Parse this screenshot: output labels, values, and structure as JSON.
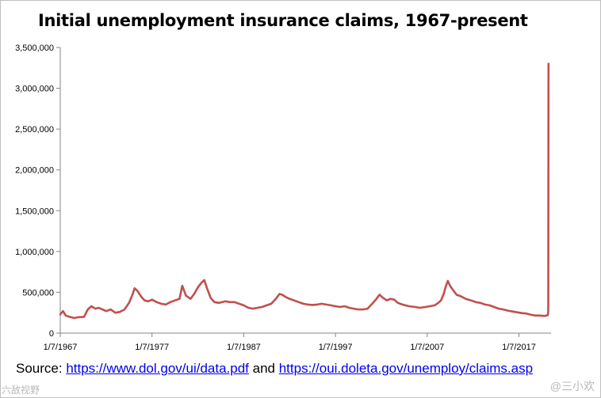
{
  "chart_data": {
    "type": "line",
    "title": "Initial unemployment insurance claims, 1967-present",
    "xlabel": "",
    "ylabel": "",
    "x_tick_labels": [
      "1/7/1967",
      "1/7/1977",
      "1/7/1987",
      "1/7/1997",
      "1/7/2007",
      "1/7/2017"
    ],
    "x_tick_years": [
      1967,
      1977,
      1987,
      1997,
      2007,
      2017
    ],
    "y_tick_labels": [
      "0",
      "500,000",
      "1,000,000",
      "1,500,000",
      "2,000,000",
      "2,500,000",
      "3,000,000",
      "3,500,000"
    ],
    "ylim": [
      0,
      3500000
    ],
    "xlim": [
      1967,
      2020.5
    ],
    "grid": false,
    "legend": "none",
    "series_color": "#c0504d",
    "series": [
      {
        "x": [
          1967.0,
          1967.3,
          1967.6,
          1968.0,
          1968.5,
          1969.0,
          1969.6,
          1970.0,
          1970.4,
          1970.8,
          1971.2,
          1971.6,
          1972.0,
          1972.5,
          1973.0,
          1973.5,
          1974.0,
          1974.5,
          1974.9,
          1975.1,
          1975.4,
          1975.8,
          1976.2,
          1976.6,
          1977.0,
          1977.5,
          1978.0,
          1978.5,
          1979.0,
          1979.5,
          1980.0,
          1980.3,
          1980.7,
          1981.2,
          1981.6,
          1982.0,
          1982.4,
          1982.7,
          1983.0,
          1983.4,
          1983.8,
          1984.3,
          1985.0,
          1985.5,
          1986.0,
          1986.5,
          1987.0,
          1987.5,
          1988.0,
          1988.5,
          1989.0,
          1989.5,
          1990.0,
          1990.5,
          1990.9,
          1991.2,
          1991.6,
          1992.0,
          1992.5,
          1993.0,
          1993.5,
          1994.0,
          1994.5,
          1995.0,
          1995.5,
          1996.0,
          1996.5,
          1997.0,
          1997.5,
          1998.0,
          1998.5,
          1999.0,
          1999.5,
          2000.0,
          2000.5,
          2001.0,
          2001.4,
          2001.8,
          2002.2,
          2002.6,
          2003.0,
          2003.4,
          2003.8,
          2004.3,
          2005.0,
          2005.7,
          2006.2,
          2006.8,
          2007.3,
          2007.8,
          2008.2,
          2008.5,
          2008.8,
          2009.0,
          2009.25,
          2009.5,
          2009.8,
          2010.2,
          2010.7,
          2011.2,
          2011.8,
          2012.3,
          2012.8,
          2013.3,
          2013.8,
          2014.3,
          2014.8,
          2015.3,
          2015.8,
          2016.3,
          2016.8,
          2017.3,
          2017.8,
          2018.3,
          2018.8,
          2019.3,
          2019.8,
          2020.0,
          2020.15,
          2020.2,
          2020.22
        ],
        "values": [
          230000,
          270000,
          215000,
          200000,
          185000,
          195000,
          200000,
          290000,
          330000,
          300000,
          310000,
          290000,
          270000,
          290000,
          250000,
          260000,
          290000,
          370000,
          480000,
          550000,
          520000,
          450000,
          400000,
          390000,
          410000,
          380000,
          360000,
          350000,
          380000,
          400000,
          420000,
          580000,
          460000,
          420000,
          480000,
          560000,
          620000,
          650000,
          550000,
          430000,
          380000,
          370000,
          390000,
          380000,
          380000,
          360000,
          340000,
          310000,
          300000,
          310000,
          320000,
          340000,
          360000,
          420000,
          480000,
          470000,
          440000,
          420000,
          400000,
          380000,
          360000,
          350000,
          345000,
          350000,
          360000,
          350000,
          340000,
          330000,
          320000,
          330000,
          310000,
          300000,
          290000,
          290000,
          300000,
          360000,
          410000,
          470000,
          430000,
          400000,
          420000,
          410000,
          370000,
          350000,
          330000,
          320000,
          310000,
          320000,
          330000,
          340000,
          370000,
          400000,
          480000,
          560000,
          640000,
          580000,
          530000,
          470000,
          450000,
          420000,
          400000,
          380000,
          370000,
          350000,
          340000,
          320000,
          300000,
          290000,
          275000,
          265000,
          255000,
          245000,
          240000,
          225000,
          215000,
          215000,
          210000,
          215000,
          220000,
          280000,
          3300000
        ]
      }
    ]
  },
  "source": {
    "prefix": "Source: ",
    "link1": "https://www.dol.gov/ui/data.pdf",
    "middle": " and ",
    "link2": "https://oui.doleta.gov/unemploy/claims.asp"
  },
  "watermark_left": "六敌视野",
  "watermark_right": "@三小欢"
}
